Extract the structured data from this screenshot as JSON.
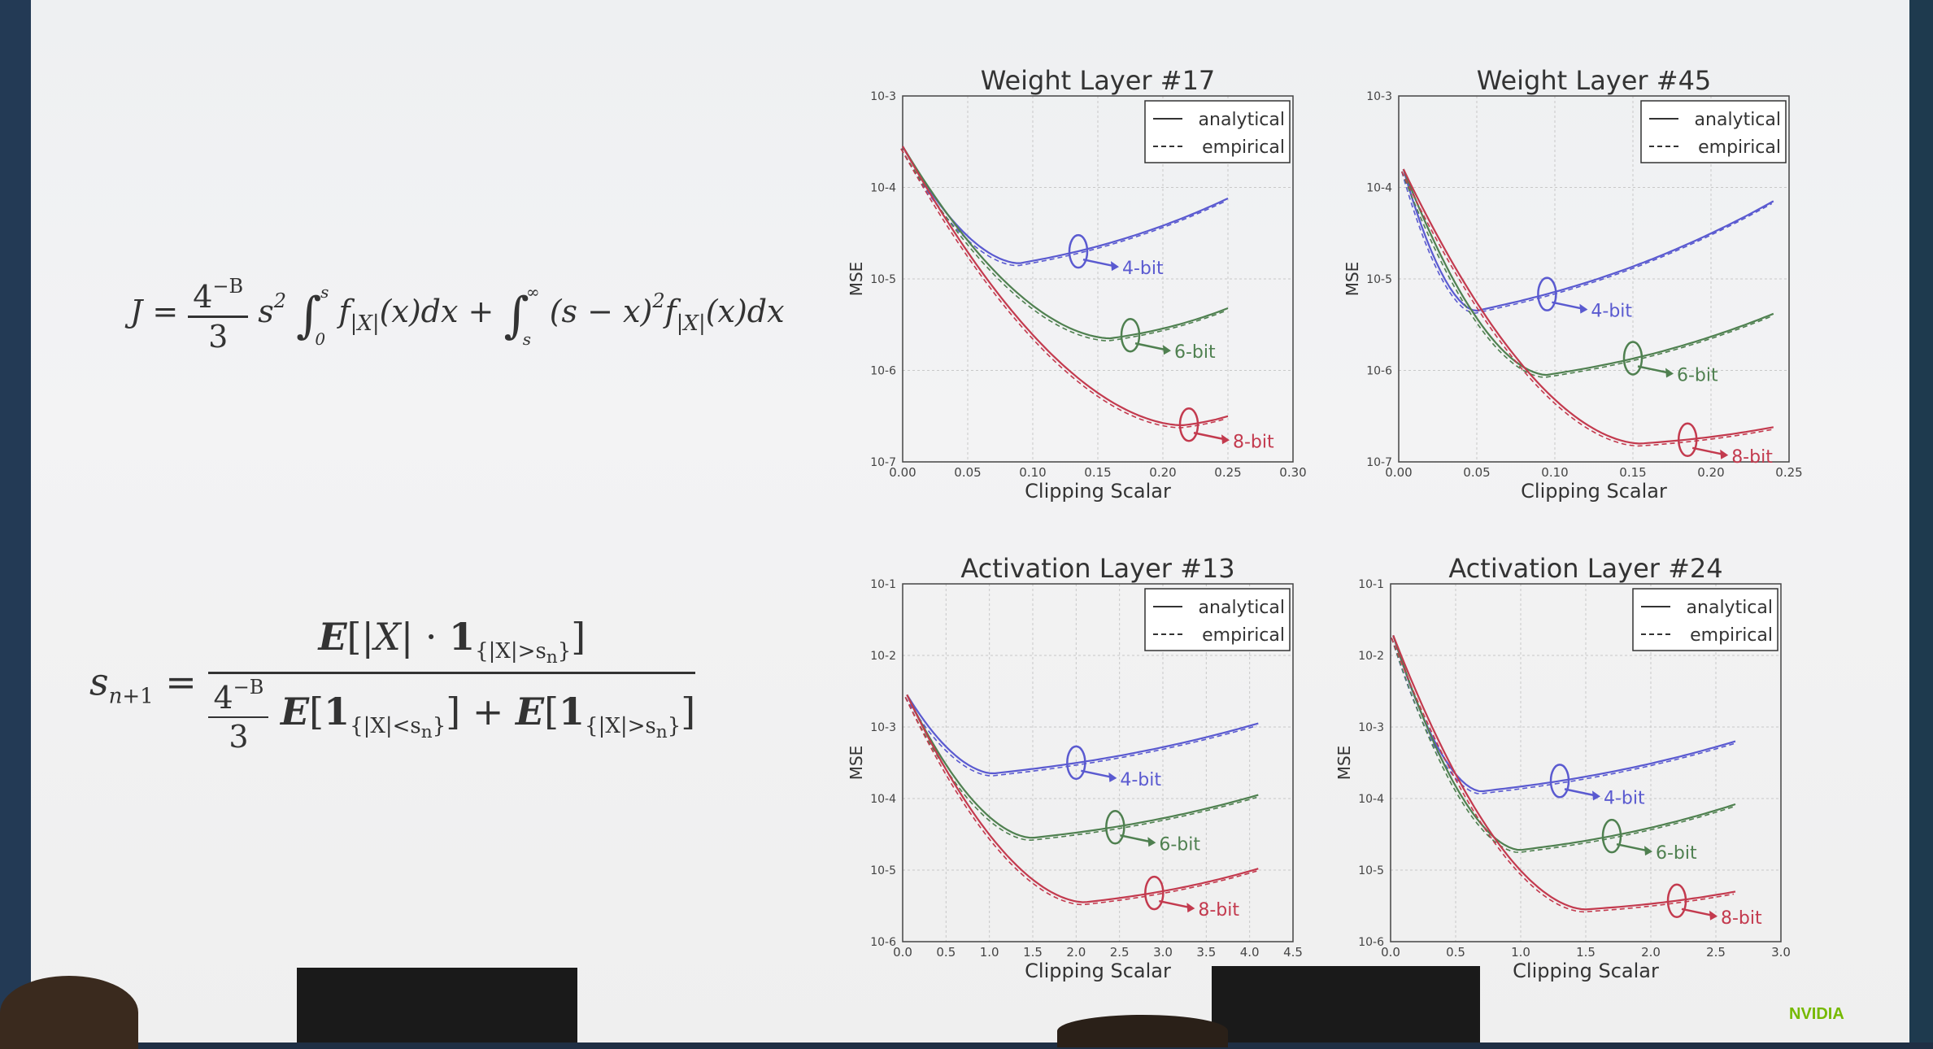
{
  "equations": {
    "eq1": "J = 4^{-B}/3 · s^2 ∫_0^s f_{|X|}(x)dx + ∫_s^∞ (s − x)^2 f_{|X|}(x)dx",
    "eq2": "s_{n+1} = E[|X| · 1_{|X|>s_n}] / (4^{-B}/3 · E[1_{|X|<s_n}] + E[1_{|X|>s_n}])"
  },
  "logo": "NVIDIA",
  "chart_data": [
    {
      "type": "line",
      "title": "Weight Layer #17",
      "xlabel": "Clipping Scalar",
      "ylabel": "MSE",
      "xlim": [
        0.0,
        0.3
      ],
      "ylim_log10": [
        -7,
        -3
      ],
      "xticks": [
        "0.00",
        "0.05",
        "0.10",
        "0.15",
        "0.20",
        "0.25",
        "0.30"
      ],
      "xtick_values": [
        0,
        0.05,
        0.1,
        0.15,
        0.2,
        0.25,
        0.3
      ],
      "yticks": [
        "10-3",
        "10-4",
        "10-5",
        "10-6",
        "10-7"
      ],
      "ytick_values": [
        -3,
        -4,
        -5,
        -6,
        -7
      ],
      "grid": true,
      "legend": {
        "position": "top-right",
        "entries": [
          "analytical",
          "empirical"
        ]
      },
      "start": [
        0.0,
        -3.55
      ],
      "series": [
        {
          "name": "4-bit",
          "color": "#5a5ad0",
          "min": [
            0.09,
            -4.83
          ],
          "end": [
            0.25,
            -4.12
          ],
          "ellipse_x": 0.135
        },
        {
          "name": "6-bit",
          "color": "#4f8050",
          "min": [
            0.16,
            -5.65
          ],
          "end": [
            0.25,
            -5.32
          ],
          "ellipse_x": 0.175
        },
        {
          "name": "8-bit",
          "color": "#c33a4e",
          "min": [
            0.215,
            -6.6
          ],
          "end": [
            0.25,
            -6.5
          ],
          "ellipse_x": 0.22
        }
      ]
    },
    {
      "type": "line",
      "title": "Weight Layer #45",
      "xlabel": "Clipping Scalar",
      "ylabel": "MSE",
      "xlim": [
        0.0,
        0.25
      ],
      "ylim_log10": [
        -7,
        -3
      ],
      "xticks": [
        "0.00",
        "0.05",
        "0.10",
        "0.15",
        "0.20",
        "0.25"
      ],
      "xtick_values": [
        0,
        0.05,
        0.1,
        0.15,
        0.2,
        0.25
      ],
      "yticks": [
        "10-3",
        "10-4",
        "10-5",
        "10-6",
        "10-7"
      ],
      "ytick_values": [
        -3,
        -4,
        -5,
        -6,
        -7
      ],
      "grid": true,
      "legend": {
        "position": "top-right",
        "entries": [
          "analytical",
          "empirical"
        ]
      },
      "start": [
        0.003,
        -3.8
      ],
      "series": [
        {
          "name": "4-bit",
          "color": "#5a5ad0",
          "min": [
            0.05,
            -5.35
          ],
          "end": [
            0.24,
            -4.15
          ],
          "ellipse_x": 0.095
        },
        {
          "name": "6-bit",
          "color": "#4f8050",
          "min": [
            0.095,
            -6.05
          ],
          "end": [
            0.24,
            -5.38
          ],
          "ellipse_x": 0.15
        },
        {
          "name": "8-bit",
          "color": "#c33a4e",
          "min": [
            0.155,
            -6.8
          ],
          "end": [
            0.24,
            -6.62
          ],
          "ellipse_x": 0.185
        }
      ]
    },
    {
      "type": "line",
      "title": "Activation Layer #13",
      "xlabel": "Clipping Scalar",
      "ylabel": "MSE",
      "xlim": [
        0.0,
        4.5
      ],
      "ylim_log10": [
        -6,
        -1
      ],
      "xticks": [
        "0.0",
        "0.5",
        "1.0",
        "1.5",
        "2.0",
        "2.5",
        "3.0",
        "3.5",
        "4.0",
        "4.5"
      ],
      "xtick_values": [
        0,
        0.5,
        1.0,
        1.5,
        2.0,
        2.5,
        3.0,
        3.5,
        4.0,
        4.5
      ],
      "yticks": [
        "10-1",
        "10-2",
        "10-3",
        "10-4",
        "10-5",
        "10-6"
      ],
      "ytick_values": [
        -1,
        -2,
        -3,
        -4,
        -5,
        -6
      ],
      "grid": true,
      "legend": {
        "position": "top-right",
        "entries": [
          "analytical",
          "empirical"
        ]
      },
      "start": [
        0.05,
        -2.55
      ],
      "series": [
        {
          "name": "4-bit",
          "color": "#5a5ad0",
          "min": [
            1.05,
            -3.65
          ],
          "end": [
            4.1,
            -2.95
          ],
          "ellipse_x": 2.0
        },
        {
          "name": "6-bit",
          "color": "#4f8050",
          "min": [
            1.5,
            -4.55
          ],
          "end": [
            4.1,
            -3.95
          ],
          "ellipse_x": 2.45
        },
        {
          "name": "8-bit",
          "color": "#c33a4e",
          "min": [
            2.1,
            -5.45
          ],
          "end": [
            4.1,
            -4.98
          ],
          "ellipse_x": 2.9
        }
      ]
    },
    {
      "type": "line",
      "title": "Activation Layer #24",
      "xlabel": "Clipping Scalar",
      "ylabel": "MSE",
      "xlim": [
        0.0,
        3.0
      ],
      "ylim_log10": [
        -6,
        -1
      ],
      "xticks": [
        "0.0",
        "0.5",
        "1.0",
        "1.5",
        "2.0",
        "2.5",
        "3.0"
      ],
      "xtick_values": [
        0,
        0.5,
        1.0,
        1.5,
        2.0,
        2.5,
        3.0
      ],
      "yticks": [
        "10-1",
        "10-2",
        "10-3",
        "10-4",
        "10-5",
        "10-6"
      ],
      "ytick_values": [
        -1,
        -2,
        -3,
        -4,
        -5,
        -6
      ],
      "grid": true,
      "legend": {
        "position": "top-right",
        "entries": [
          "analytical",
          "empirical"
        ]
      },
      "start": [
        0.02,
        -1.72
      ],
      "series": [
        {
          "name": "4-bit",
          "color": "#5a5ad0",
          "min": [
            0.7,
            -3.9
          ],
          "end": [
            2.65,
            -3.2
          ],
          "ellipse_x": 1.3
        },
        {
          "name": "6-bit",
          "color": "#4f8050",
          "min": [
            1.0,
            -4.72
          ],
          "end": [
            2.65,
            -4.08
          ],
          "ellipse_x": 1.7
        },
        {
          "name": "8-bit",
          "color": "#c33a4e",
          "min": [
            1.5,
            -5.55
          ],
          "end": [
            2.65,
            -5.3
          ],
          "ellipse_x": 2.2
        }
      ]
    }
  ]
}
